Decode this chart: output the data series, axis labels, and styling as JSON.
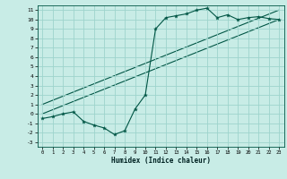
{
  "title": "",
  "xlabel": "Humidex (Indice chaleur)",
  "ylabel": "",
  "bg_color": "#c8ece6",
  "grid_color": "#9dd4cc",
  "line_color": "#005544",
  "xlim": [
    -0.5,
    23.5
  ],
  "ylim": [
    -3.5,
    11.5
  ],
  "xticks": [
    0,
    1,
    2,
    3,
    4,
    5,
    6,
    7,
    8,
    9,
    10,
    11,
    12,
    13,
    14,
    15,
    16,
    17,
    18,
    19,
    20,
    21,
    22,
    23
  ],
  "yticks": [
    -3,
    -2,
    -1,
    0,
    1,
    2,
    3,
    4,
    5,
    6,
    7,
    8,
    9,
    10,
    11
  ],
  "data_y": [
    -0.5,
    -0.3,
    0.0,
    0.2,
    -0.8,
    -1.2,
    -1.5,
    -2.2,
    -1.8,
    0.5,
    2.0,
    9.0,
    10.2,
    10.4,
    10.6,
    11.0,
    11.2,
    10.2,
    10.5,
    10.0,
    10.2,
    10.3,
    10.1,
    10.0
  ],
  "trend1_x": [
    0,
    23
  ],
  "trend1_y": [
    0.0,
    10.0
  ],
  "trend2_x": [
    0,
    23
  ],
  "trend2_y": [
    1.0,
    11.0
  ],
  "marker": "*",
  "fig_width": 3.2,
  "fig_height": 2.0,
  "dpi": 100
}
